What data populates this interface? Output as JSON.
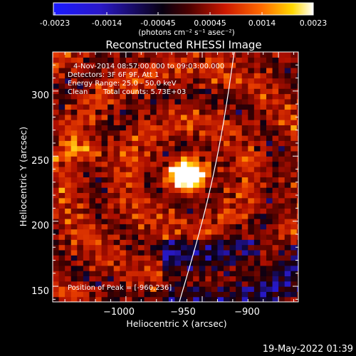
{
  "colorbar": {
    "ticks": [
      "-0.0023",
      "-0.0014",
      "-0.00045",
      "0.00045",
      "0.0014",
      "0.0023"
    ],
    "min": -0.0023,
    "max": 0.0023,
    "unit_label": "(photons cm⁻² s⁻¹ asec⁻²)"
  },
  "chart_data": {
    "type": "heatmap",
    "title": "Reconstructed RHESSI Image",
    "xlabel": "Heliocentric X (arcsec)",
    "ylabel": "Heliocentric Y (arcsec)",
    "xlim": [
      -1048,
      -887
    ],
    "ylim": [
      138,
      330
    ],
    "xticks": [
      -1000,
      -950,
      -900
    ],
    "xtick_labels": [
      "−1000",
      "−950",
      "−900"
    ],
    "yticks": [
      150,
      200,
      250,
      300
    ],
    "ytick_labels": [
      "150",
      "200",
      "250",
      "300"
    ],
    "annotations": {
      "time": "4-Nov-2014 08:57:00.000 to 09:03:00.000",
      "detectors": "Detectors: 3F 6F 9F, Att 1",
      "energy": "Energy Range: 25.0 - 50.0 keV",
      "method": "Clean",
      "counts": "Total counts: 5.73E+03",
      "peak": "Position of Peak = [-960,236]"
    },
    "peak": [
      -960,
      236
    ],
    "secondary_source": [
      -1025,
      255
    ],
    "limb_line": [
      [
        -929,
        330
      ],
      [
        -965,
        138
      ]
    ],
    "colormap": "blue-black-red-yellow-white"
  },
  "timestamp": "19-May-2022 01:39"
}
